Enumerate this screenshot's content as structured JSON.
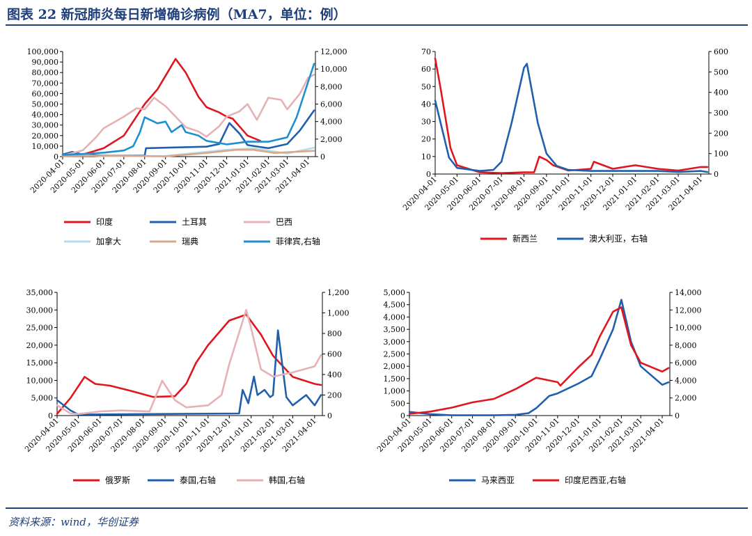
{
  "figure": {
    "title": "图表 22   新冠肺炎每日新增确诊病例（MA7，单位：例）",
    "source": "资料来源：wind，华创证券"
  },
  "colors": {
    "navy": "#1f3f7a",
    "red": "#e0161f",
    "darkblue": "#1f5fae",
    "pink": "#e6b1b5",
    "lightblue": "#b7dbee",
    "tan": "#d9a88a",
    "brightblue": "#1f8fd0"
  },
  "chart_data": [
    {
      "id": "chart1",
      "type": "line",
      "x_ticks": [
        "2020-04-01",
        "2020-05-01",
        "2020-06-01",
        "2020-07-01",
        "2020-08-01",
        "2020-09-01",
        "2020-10-01",
        "2020-11-01",
        "2020-12-01",
        "2021-01-01",
        "2021-02-01",
        "2021-03-01",
        "2021-04-01"
      ],
      "left_axis": {
        "min": 0,
        "max": 100000,
        "ticks": [
          "0",
          "10,000",
          "20,000",
          "30,000",
          "40,000",
          "50,000",
          "60,000",
          "70,000",
          "80,000",
          "90,000",
          "100,000"
        ]
      },
      "right_axis": {
        "min": 0,
        "max": 12000,
        "ticks": [
          "0",
          "2,000",
          "4,000",
          "6,000",
          "8,000",
          "10,000",
          "12,000"
        ]
      },
      "legend_layout": "two-rows-below",
      "series": [
        {
          "name": "印度",
          "color": "#e0161f",
          "axis": "left",
          "x": [
            "2020-04-01",
            "2020-05-01",
            "2020-06-01",
            "2020-07-01",
            "2020-08-01",
            "2020-08-20",
            "2020-09-16",
            "2020-10-01",
            "2020-10-20",
            "2020-11-01",
            "2020-11-20",
            "2020-12-01",
            "2020-12-10",
            "2021-01-01",
            "2021-01-20"
          ],
          "y": [
            500,
            2000,
            8000,
            20000,
            50000,
            64000,
            93000,
            80000,
            57000,
            47000,
            42000,
            38000,
            36000,
            20000,
            15000
          ]
        },
        {
          "name": "土耳其",
          "color": "#1f5fae",
          "axis": "left",
          "x": [
            "2020-04-01",
            "2020-04-15",
            "2020-05-01",
            "2020-06-01",
            "2020-07-01",
            "2020-08-01",
            "2020-08-03",
            "2020-09-01",
            "2020-10-01",
            "2020-11-01",
            "2020-11-20",
            "2020-12-05",
            "2020-12-20",
            "2021-01-01",
            "2021-02-01",
            "2021-03-01",
            "2021-03-20",
            "2021-04-10"
          ],
          "y": [
            2000,
            4500,
            2000,
            1000,
            1000,
            1000,
            8000,
            8500,
            9000,
            9500,
            12000,
            32000,
            22000,
            11000,
            8000,
            12000,
            25000,
            44000
          ]
        },
        {
          "name": "巴西",
          "color": "#e6b1b5",
          "axis": "left",
          "x": [
            "2020-04-01",
            "2020-05-01",
            "2020-05-20",
            "2020-06-01",
            "2020-07-01",
            "2020-07-20",
            "2020-08-01",
            "2020-08-15",
            "2020-09-01",
            "2020-10-01",
            "2020-10-20",
            "2020-11-01",
            "2020-11-20",
            "2020-12-01",
            "2020-12-20",
            "2021-01-01",
            "2021-01-15",
            "2021-02-01",
            "2021-02-20",
            "2021-03-01",
            "2021-03-20",
            "2021-04-01",
            "2021-04-10"
          ],
          "y": [
            1000,
            6000,
            18000,
            27000,
            38000,
            46000,
            45000,
            56000,
            48000,
            28000,
            24000,
            19000,
            29000,
            38000,
            43000,
            50000,
            35000,
            56000,
            54000,
            45000,
            60000,
            75000,
            78000
          ]
        },
        {
          "name": "加拿大",
          "color": "#b7dbee",
          "axis": "left",
          "x": [
            "2020-04-01",
            "2020-05-01",
            "2020-06-01",
            "2020-09-01",
            "2020-12-01",
            "2021-01-10",
            "2021-03-01",
            "2021-04-10"
          ],
          "y": [
            1500,
            1300,
            400,
            600,
            6500,
            7800,
            3000,
            8500
          ]
        },
        {
          "name": "瑞典",
          "color": "#d9a88a",
          "axis": "left",
          "x": [
            "2020-04-01",
            "2020-06-15",
            "2020-09-01",
            "2020-11-01",
            "2020-12-15",
            "2021-01-10",
            "2021-02-10",
            "2021-04-10"
          ],
          "y": [
            600,
            1000,
            200,
            3500,
            6500,
            6500,
            3500,
            5500
          ]
        },
        {
          "name": "菲律宾,右轴",
          "color": "#1f8fd0",
          "axis": "right",
          "x": [
            "2020-04-01",
            "2020-05-01",
            "2020-06-01",
            "2020-07-01",
            "2020-07-15",
            "2020-07-25",
            "2020-08-01",
            "2020-08-20",
            "2020-09-01",
            "2020-09-10",
            "2020-09-25",
            "2020-10-01",
            "2020-10-20",
            "2020-11-01",
            "2020-12-01",
            "2021-01-01",
            "2021-02-01",
            "2021-03-01",
            "2021-03-15",
            "2021-04-01",
            "2021-04-10"
          ],
          "y": [
            200,
            300,
            450,
            700,
            1200,
            2800,
            4500,
            3800,
            4000,
            2800,
            3600,
            2800,
            2400,
            1800,
            1400,
            1700,
            1700,
            2200,
            4500,
            8500,
            10600
          ]
        }
      ]
    },
    {
      "id": "chart2",
      "type": "line",
      "x_ticks": [
        "2020-04-01",
        "2020-05-01",
        "2020-06-01",
        "2020-07-01",
        "2020-08-01",
        "2020-09-01",
        "2020-10-01",
        "2020-11-01",
        "2020-12-01",
        "2021-01-01",
        "2021-02-01",
        "2021-03-01",
        "2021-04-01"
      ],
      "left_axis": {
        "min": 0,
        "max": 70,
        "ticks": [
          "0",
          "10",
          "20",
          "30",
          "40",
          "50",
          "60",
          "70"
        ]
      },
      "right_axis": {
        "min": 0,
        "max": 600,
        "ticks": [
          "0",
          "100",
          "200",
          "300",
          "400",
          "500",
          "600"
        ]
      },
      "legend_layout": "one-row-below",
      "series": [
        {
          "name": "新西兰",
          "color": "#e0161f",
          "axis": "left",
          "x": [
            "2020-04-01",
            "2020-04-08",
            "2020-04-22",
            "2020-05-01",
            "2020-06-01",
            "2020-07-01",
            "2020-08-01",
            "2020-08-15",
            "2020-08-22",
            "2020-09-01",
            "2020-09-10",
            "2020-10-01",
            "2020-11-01",
            "2020-11-05",
            "2020-12-01",
            "2021-01-01",
            "2021-02-01",
            "2021-03-01",
            "2021-04-01",
            "2021-04-10"
          ],
          "y": [
            66,
            50,
            15,
            5,
            1,
            0.5,
            1,
            1,
            10,
            8,
            5,
            2,
            3,
            7,
            3,
            5,
            3,
            2,
            4,
            4
          ]
        },
        {
          "name": "澳大利亚，右轴",
          "color": "#1f5fae",
          "axis": "right",
          "x": [
            "2020-04-01",
            "2020-04-20",
            "2020-05-01",
            "2020-06-01",
            "2020-06-20",
            "2020-07-01",
            "2020-07-15",
            "2020-08-01",
            "2020-08-05",
            "2020-08-20",
            "2020-09-01",
            "2020-09-15",
            "2020-10-01",
            "2020-11-01",
            "2020-12-01",
            "2021-01-01",
            "2021-02-01",
            "2021-03-01",
            "2021-04-01",
            "2021-04-10"
          ],
          "y": [
            360,
            80,
            30,
            15,
            20,
            60,
            250,
            520,
            540,
            250,
            100,
            40,
            20,
            15,
            15,
            15,
            15,
            10,
            15,
            10
          ]
        }
      ]
    },
    {
      "id": "chart3",
      "type": "line",
      "x_ticks": [
        "2020-04-01",
        "2020-05-01",
        "2020-06-01",
        "2020-07-01",
        "2020-08-01",
        "2020-09-01",
        "2020-10-01",
        "2020-11-01",
        "2020-12-01",
        "2021-01-01",
        "2021-02-01",
        "2021-03-01",
        "2021-04-01"
      ],
      "left_axis": {
        "min": 0,
        "max": 35000,
        "ticks": [
          "0",
          "5,000",
          "10,000",
          "15,000",
          "20,000",
          "25,000",
          "30,000",
          "35,000"
        ]
      },
      "right_axis": {
        "min": 0,
        "max": 1200,
        "ticks": [
          "0",
          "200",
          "400",
          "600",
          "800",
          "1,000",
          "1,200"
        ]
      },
      "legend_layout": "one-row-below",
      "series": [
        {
          "name": "俄罗斯",
          "color": "#e0161f",
          "axis": "left",
          "x": [
            "2020-04-01",
            "2020-04-20",
            "2020-05-10",
            "2020-05-25",
            "2020-06-15",
            "2020-07-15",
            "2020-08-15",
            "2020-09-15",
            "2020-10-01",
            "2020-10-15",
            "2020-11-01",
            "2020-12-01",
            "2020-12-25",
            "2021-01-15",
            "2021-02-01",
            "2021-03-01",
            "2021-04-01",
            "2021-04-10"
          ],
          "y": [
            500,
            5000,
            11000,
            9000,
            8500,
            7000,
            5300,
            5500,
            9000,
            15000,
            20000,
            27000,
            28700,
            23000,
            17000,
            11000,
            9000,
            8700
          ]
        },
        {
          "name": "泰国,右轴",
          "color": "#1f5fae",
          "axis": "right",
          "x": [
            "2020-04-01",
            "2020-04-20",
            "2020-05-01",
            "2020-12-15",
            "2020-12-20",
            "2020-12-28",
            "2021-01-05",
            "2021-01-10",
            "2021-01-20",
            "2021-01-28",
            "2021-02-01",
            "2021-02-08",
            "2021-02-20",
            "2021-03-01",
            "2021-03-20",
            "2021-04-01",
            "2021-04-10"
          ],
          "y": [
            150,
            50,
            10,
            20,
            250,
            120,
            380,
            200,
            250,
            180,
            200,
            830,
            180,
            100,
            200,
            100,
            200
          ]
        },
        {
          "name": "韩国,右轴",
          "color": "#e6b1b5",
          "axis": "right",
          "x": [
            "2020-04-01",
            "2020-04-20",
            "2020-05-01",
            "2020-06-01",
            "2020-07-01",
            "2020-08-10",
            "2020-08-28",
            "2020-09-15",
            "2020-10-01",
            "2020-11-01",
            "2020-11-20",
            "2020-12-01",
            "2020-12-25",
            "2021-01-01",
            "2021-01-15",
            "2021-02-01",
            "2021-03-01",
            "2021-04-01",
            "2021-04-10"
          ],
          "y": [
            100,
            20,
            15,
            40,
            50,
            40,
            340,
            150,
            80,
            100,
            200,
            500,
            1030,
            850,
            450,
            380,
            420,
            480,
            590
          ]
        }
      ]
    },
    {
      "id": "chart4",
      "type": "line",
      "x_ticks": [
        "2020-04-01",
        "2020-05-01",
        "2020-06-01",
        "2020-07-01",
        "2020-08-01",
        "2020-09-01",
        "2020-10-01",
        "2020-11-01",
        "2020-12-01",
        "2021-01-01",
        "2021-02-01",
        "2021-03-01",
        "2021-04-01"
      ],
      "left_axis": {
        "min": 0,
        "max": 5000,
        "ticks": [
          "0",
          "500",
          "1,000",
          "1,500",
          "2,000",
          "2,500",
          "3,000",
          "3,500",
          "4,000",
          "4,500",
          "5,000"
        ]
      },
      "right_axis": {
        "min": 0,
        "max": 14000,
        "ticks": [
          "0",
          "2,000",
          "4,000",
          "6,000",
          "8,000",
          "10,000",
          "12,000",
          "14,000"
        ]
      },
      "legend_layout": "one-row-below",
      "series": [
        {
          "name": "马来西亚",
          "color": "#1f5fae",
          "axis": "left",
          "x": [
            "2020-04-01",
            "2020-05-01",
            "2020-06-01",
            "2020-07-01",
            "2020-08-01",
            "2020-09-01",
            "2020-09-20",
            "2020-10-01",
            "2020-10-20",
            "2020-11-01",
            "2020-12-01",
            "2020-12-20",
            "2021-01-01",
            "2021-01-20",
            "2021-02-01",
            "2021-02-15",
            "2021-03-01",
            "2021-04-01",
            "2021-04-10"
          ],
          "y": [
            150,
            60,
            10,
            10,
            10,
            30,
            100,
            300,
            800,
            900,
            1300,
            1600,
            2300,
            3500,
            4700,
            3000,
            2000,
            1250,
            1350
          ]
        },
        {
          "name": "印度尼西亚,右轴",
          "color": "#e0161f",
          "axis": "right",
          "x": [
            "2020-04-01",
            "2020-05-01",
            "2020-06-01",
            "2020-07-01",
            "2020-08-01",
            "2020-09-01",
            "2020-10-01",
            "2020-11-01",
            "2020-11-05",
            "2020-12-01",
            "2020-12-20",
            "2021-01-01",
            "2021-01-20",
            "2021-02-01",
            "2021-02-15",
            "2021-03-01",
            "2021-04-01",
            "2021-04-10"
          ],
          "y": [
            200,
            450,
            900,
            1500,
            1900,
            3000,
            4300,
            3800,
            3400,
            5500,
            6900,
            9000,
            11800,
            12300,
            8000,
            6000,
            5000,
            5400
          ]
        }
      ]
    }
  ]
}
